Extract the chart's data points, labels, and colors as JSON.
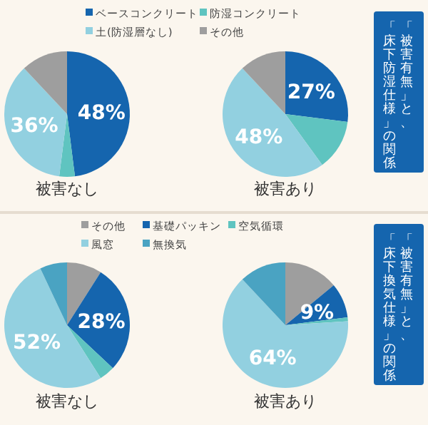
{
  "chart_data": [
    {
      "type": "pie",
      "title": "被害なし",
      "categories": [
        "ベースコンクリート",
        "防湿コンクリート",
        "土(防湿層なし)",
        "その他"
      ],
      "values": [
        48,
        4,
        36,
        12
      ],
      "colors": [
        "#1565ae",
        "#5fc4c0",
        "#92d0e0",
        "#9e9e9e"
      ],
      "value_labels": [
        "48%",
        null,
        "36%",
        null
      ],
      "legend": "top"
    },
    {
      "type": "pie",
      "title": "被害あり",
      "categories": [
        null,
        null,
        null,
        null
      ],
      "values": [
        27,
        13,
        48,
        12
      ],
      "colors": [
        "#1565ae",
        "#5fc4c0",
        "#92d0e0",
        "#9e9e9e"
      ],
      "value_labels": [
        "27%",
        null,
        "48%",
        null
      ],
      "annotations": [
        "「被害有無」と、",
        "「床下防湿仕様」の関係"
      ]
    },
    {
      "type": "pie",
      "title": "被害なし",
      "categories": [
        "その他",
        "基礎パッキン",
        "空気循環",
        "風窓",
        "無換気"
      ],
      "values": [
        9,
        28,
        4,
        52,
        7
      ],
      "colors": [
        "#9e9e9e",
        "#1565ae",
        "#5fc4c0",
        "#92d0e0",
        "#4aa3c2"
      ],
      "value_labels": [
        null,
        "28%",
        null,
        "52%",
        null
      ],
      "legend": "top"
    },
    {
      "type": "pie",
      "title": "被害あり",
      "categories": [
        null,
        null,
        null,
        null,
        null
      ],
      "values": [
        14,
        9,
        1,
        64,
        12
      ],
      "colors": [
        "#9e9e9e",
        "#1565ae",
        "#5fc4c0",
        "#92d0e0",
        "#4aa3c2"
      ],
      "value_labels": [
        null,
        "9%",
        null,
        "64%",
        null
      ],
      "annotations": [
        "「被害有無」と、",
        "「床下換気仕様」の関係"
      ]
    }
  ]
}
